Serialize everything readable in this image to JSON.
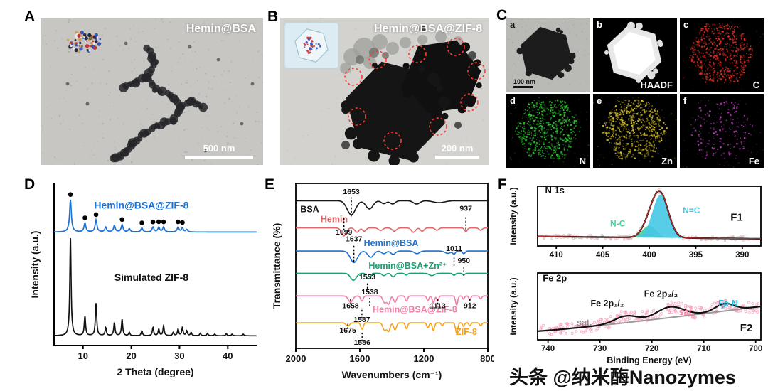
{
  "figure": {
    "watermark": "头条 @纳米酶Nanozymes",
    "panel_a": {
      "label": "A",
      "title": "Hemin@BSA",
      "scalebar": "500 nm"
    },
    "panel_b": {
      "label": "B",
      "title": "Hemin@BSA@ZIF-8",
      "scalebar": "200 nm"
    },
    "panel_c": {
      "label": "C",
      "tiles": [
        {
          "letter": "a",
          "caption": "",
          "scalebar": "100 nm"
        },
        {
          "letter": "b",
          "caption": "HAADF"
        },
        {
          "letter": "c",
          "caption": "C"
        },
        {
          "letter": "d",
          "caption": "N"
        },
        {
          "letter": "e",
          "caption": "Zn"
        },
        {
          "letter": "f",
          "caption": "Fe"
        }
      ]
    },
    "panel_d": {
      "label": "D"
    },
    "panel_e": {
      "label": "E"
    },
    "panel_f": {
      "label": "F"
    }
  },
  "chart_data": [
    {
      "id": "xrd",
      "type": "line",
      "panel": "D",
      "xlabel": "2 Theta (degree)",
      "ylabel": "Intensity (a.u.)",
      "xlim": [
        4,
        46
      ],
      "xticks": [
        10,
        20,
        30,
        40
      ],
      "series": [
        {
          "name": "Hemin@BSA@ZIF-8",
          "color": "#1d72d2",
          "baseline": 0.7,
          "peak_width": 0.22,
          "peaks": [
            [
              7.4,
              0.2
            ],
            [
              10.4,
              0.055
            ],
            [
              12.7,
              0.075
            ],
            [
              14.7,
              0.03
            ],
            [
              16.5,
              0.04
            ],
            [
              18.1,
              0.045
            ],
            [
              19.6,
              0.02
            ],
            [
              22.2,
              0.025
            ],
            [
              24.5,
              0.03
            ],
            [
              25.7,
              0.03
            ],
            [
              26.7,
              0.03
            ],
            [
              29.7,
              0.03
            ],
            [
              30.6,
              0.025
            ],
            [
              31.5,
              0.015
            ]
          ],
          "dot_peaks": [
            7.4,
            10.4,
            12.7,
            18.1,
            22.2,
            24.5,
            25.7,
            26.7,
            29.7,
            30.6
          ],
          "label_pos": {
            "x": 12.3,
            "y": 0.845
          }
        },
        {
          "name": "Simulated ZIF-8",
          "color": "#111111",
          "baseline": 0.06,
          "peak_width": 0.16,
          "peaks": [
            [
              7.4,
              0.61
            ],
            [
              10.4,
              0.12
            ],
            [
              12.7,
              0.2
            ],
            [
              14.7,
              0.05
            ],
            [
              16.5,
              0.08
            ],
            [
              18.1,
              0.1
            ],
            [
              19.6,
              0.02
            ],
            [
              22.2,
              0.03
            ],
            [
              24.5,
              0.05
            ],
            [
              25.7,
              0.04
            ],
            [
              26.7,
              0.06
            ],
            [
              28.7,
              0.02
            ],
            [
              29.7,
              0.04
            ],
            [
              30.6,
              0.05
            ],
            [
              31.5,
              0.03
            ],
            [
              32.4,
              0.02
            ],
            [
              34.3,
              0.015
            ],
            [
              35.8,
              0.015
            ],
            [
              37.3,
              0.01
            ],
            [
              39.7,
              0.012
            ],
            [
              40.9,
              0.01
            ],
            [
              43.2,
              0.01
            ]
          ],
          "dot_peaks": [],
          "label_pos": {
            "x": 16.5,
            "y": 0.4
          }
        }
      ]
    },
    {
      "id": "ftir",
      "type": "line",
      "panel": "E",
      "xlabel": "Wavenumbers (cm⁻¹)",
      "ylabel": "Transmittance (%)",
      "xlim": [
        2000,
        800
      ],
      "xticks": [
        2000,
        1600,
        1200,
        800
      ],
      "series": [
        {
          "name": "BSA",
          "color": "#151515",
          "baseline": 0.895,
          "label": {
            "x": 1972,
            "y": 0.825
          },
          "bands": [
            [
              1653,
              0.085,
              26
            ],
            [
              1540,
              0.05,
              22
            ],
            [
              1450,
              0.018,
              16
            ],
            [
              1395,
              0.02,
              16
            ],
            [
              1245,
              0.02,
              20
            ],
            [
              1105,
              0.012,
              35
            ]
          ]
        },
        {
          "name": "Hemin",
          "color": "#e06868",
          "baseline": 0.73,
          "label": {
            "x": 1845,
            "y": 0.765
          },
          "bands": [
            [
              1699,
              0.048,
              15
            ],
            [
              1618,
              0.026,
              13
            ],
            [
              1572,
              0.02,
              11
            ],
            [
              1470,
              0.015,
              13
            ],
            [
              1385,
              0.02,
              13
            ],
            [
              1265,
              0.026,
              13
            ],
            [
              1210,
              0.02,
              11
            ],
            [
              1118,
              0.014,
              11
            ],
            [
              937,
              0.022,
              9
            ],
            [
              845,
              0.014,
              10
            ]
          ]
        },
        {
          "name": "Hemin@BSA",
          "color": "#1d72d2",
          "baseline": 0.59,
          "label": {
            "x": 1575,
            "y": 0.62
          },
          "bands": [
            [
              1637,
              0.07,
              22
            ],
            [
              1532,
              0.038,
              18
            ],
            [
              1450,
              0.016,
              14
            ],
            [
              1392,
              0.02,
              14
            ],
            [
              1243,
              0.016,
              16
            ],
            [
              1050,
              0.014,
              18
            ],
            [
              1011,
              0.018,
              8
            ],
            [
              950,
              0.016,
              8
            ]
          ]
        },
        {
          "name": "Hemin@BSA+Zn²⁺",
          "color": "#15a271",
          "baseline": 0.455,
          "label": {
            "x": 1545,
            "y": 0.482
          },
          "bands": [
            [
              1640,
              0.042,
              18
            ],
            [
              1553,
              0.026,
              8
            ],
            [
              1538,
              0.026,
              8
            ],
            [
              1450,
              0.014,
              11
            ],
            [
              1392,
              0.022,
              11
            ],
            [
              1310,
              0.01,
              9
            ],
            [
              1150,
              0.014,
              16
            ],
            [
              1011,
              0.012,
              8
            ],
            [
              950,
              0.01,
              7
            ]
          ]
        },
        {
          "name": "Hemin@BSA@ZIF-8",
          "color": "#f07fa6",
          "baseline": 0.318,
          "label": {
            "x": 1520,
            "y": 0.218
          },
          "bands": [
            [
              1658,
              0.038,
              14
            ],
            [
              1587,
              0.032,
              8
            ],
            [
              1445,
              0.042,
              11
            ],
            [
              1420,
              0.048,
              9
            ],
            [
              1380,
              0.038,
              9
            ],
            [
              1308,
              0.032,
              7
            ],
            [
              1175,
              0.028,
              7
            ],
            [
              1140,
              0.042,
              7
            ],
            [
              1113,
              0.032,
              6
            ],
            [
              995,
              0.055,
              7
            ],
            [
              952,
              0.02,
              6
            ],
            [
              912,
              0.024,
              6
            ],
            [
              845,
              0.018,
              7
            ]
          ]
        },
        {
          "name": "ZIF-8",
          "color": "#f5a21e",
          "baseline": 0.155,
          "label": {
            "x": 1000,
            "y": 0.082
          },
          "bands": [
            [
              1675,
              0.02,
              11
            ],
            [
              1586,
              0.038,
              8
            ],
            [
              1445,
              0.046,
              11
            ],
            [
              1420,
              0.05,
              9
            ],
            [
              1380,
              0.042,
              9
            ],
            [
              1308,
              0.036,
              7
            ],
            [
              1175,
              0.03,
              7
            ],
            [
              1140,
              0.046,
              7
            ],
            [
              1085,
              0.018,
              6
            ],
            [
              995,
              0.062,
              7
            ],
            [
              952,
              0.022,
              6
            ],
            [
              912,
              0.018,
              6
            ],
            [
              845,
              0.018,
              7
            ]
          ]
        }
      ],
      "annotations": [
        {
          "text": "1653",
          "x": 1653,
          "y": 0.935,
          "line": [
            0.8,
            0.915
          ]
        },
        {
          "text": "1699",
          "x": 1699,
          "y": 0.69,
          "line": [
            0.715,
            0.8
          ]
        },
        {
          "text": "937",
          "x": 937,
          "y": 0.835,
          "line": [
            0.72,
            0.81
          ]
        },
        {
          "text": "1637",
          "x": 1637,
          "y": 0.648,
          "line": [
            0.525,
            0.625
          ]
        },
        {
          "text": "1011",
          "x": 1011,
          "y": 0.59,
          "line": [
            0.5,
            0.565
          ]
        },
        {
          "text": "950",
          "x": 950,
          "y": 0.518,
          "line": [
            0.44,
            0.495
          ]
        },
        {
          "text": "1553",
          "x": 1553,
          "y": 0.418,
          "line": [
            0.34,
            0.395
          ]
        },
        {
          "text": "1538",
          "x": 1538,
          "y": 0.327,
          "line": [
            0.255,
            0.305
          ]
        },
        {
          "text": "1658",
          "x": 1658,
          "y": 0.243,
          "line": [
            0.266,
            0.303
          ]
        },
        {
          "text": "1113",
          "x": 1113,
          "y": 0.243,
          "line": [
            0.266,
            0.3
          ]
        },
        {
          "text": "912",
          "x": 912,
          "y": 0.243,
          "line": [
            0.266,
            0.3
          ]
        },
        {
          "text": "1587",
          "x": 1587,
          "y": 0.159,
          "line": [
            0.18,
            0.245
          ]
        },
        {
          "text": "1675",
          "x": 1675,
          "y": 0.095,
          "line": [
            0.117,
            0.148
          ]
        },
        {
          "text": "1586",
          "x": 1586,
          "y": 0.022,
          "line": [
            0.042,
            0.095
          ]
        }
      ]
    },
    {
      "id": "xps_n1s",
      "type": "line",
      "panel": "F",
      "region_label": "N 1s",
      "ylabel": "Intensity (a.u.)",
      "xlim": [
        412,
        388
      ],
      "xticks": [
        410,
        405,
        400,
        395,
        390
      ],
      "badge": "F1",
      "baseline": [
        0.16,
        0.12
      ],
      "components": [
        {
          "name": "N=C",
          "center": 398.8,
          "sigma": 0.85,
          "amp": 0.72,
          "color": "#45c8e6",
          "label": {
            "x": 396.4,
            "y": 0.55
          }
        },
        {
          "name": "N-C",
          "center": 400.0,
          "sigma": 0.75,
          "amp": 0.2,
          "color": "#3fd29a",
          "label": {
            "x": 404.2,
            "y": 0.33
          }
        }
      ]
    },
    {
      "id": "xps_fe2p",
      "type": "scatter+line",
      "panel": "F",
      "region_label": "Fe 2p",
      "xlabel": "Binding Energy (eV)",
      "ylabel": "Intensity (a.u.)",
      "xlim": [
        742,
        699
      ],
      "xticks": [
        740,
        730,
        720,
        710,
        700
      ],
      "badge": "F2",
      "background": [
        0.13,
        0.5
      ],
      "peaks": [
        [
          725.0,
          2.2,
          0.1
        ],
        [
          716.5,
          2.6,
          0.16
        ],
        [
          706.0,
          1.8,
          0.11
        ]
      ],
      "labels": [
        {
          "text": "Fe 2p₁/₂",
          "x": 731.8,
          "y": 0.5,
          "color": "#111111"
        },
        {
          "text": "Fe 2p₃/₂",
          "x": 721.5,
          "y": 0.645,
          "color": "#111111"
        },
        {
          "text": "sat.",
          "x": 734.5,
          "y": 0.215,
          "color": "#8a8a8a"
        },
        {
          "text": "sat.",
          "x": 714.8,
          "y": 0.37,
          "color": "#f585a8"
        },
        {
          "text": "Fe-N",
          "x": 707.2,
          "y": 0.5,
          "color": "#2ab8d8"
        }
      ],
      "scatter_color": "#f4a0b8"
    }
  ]
}
